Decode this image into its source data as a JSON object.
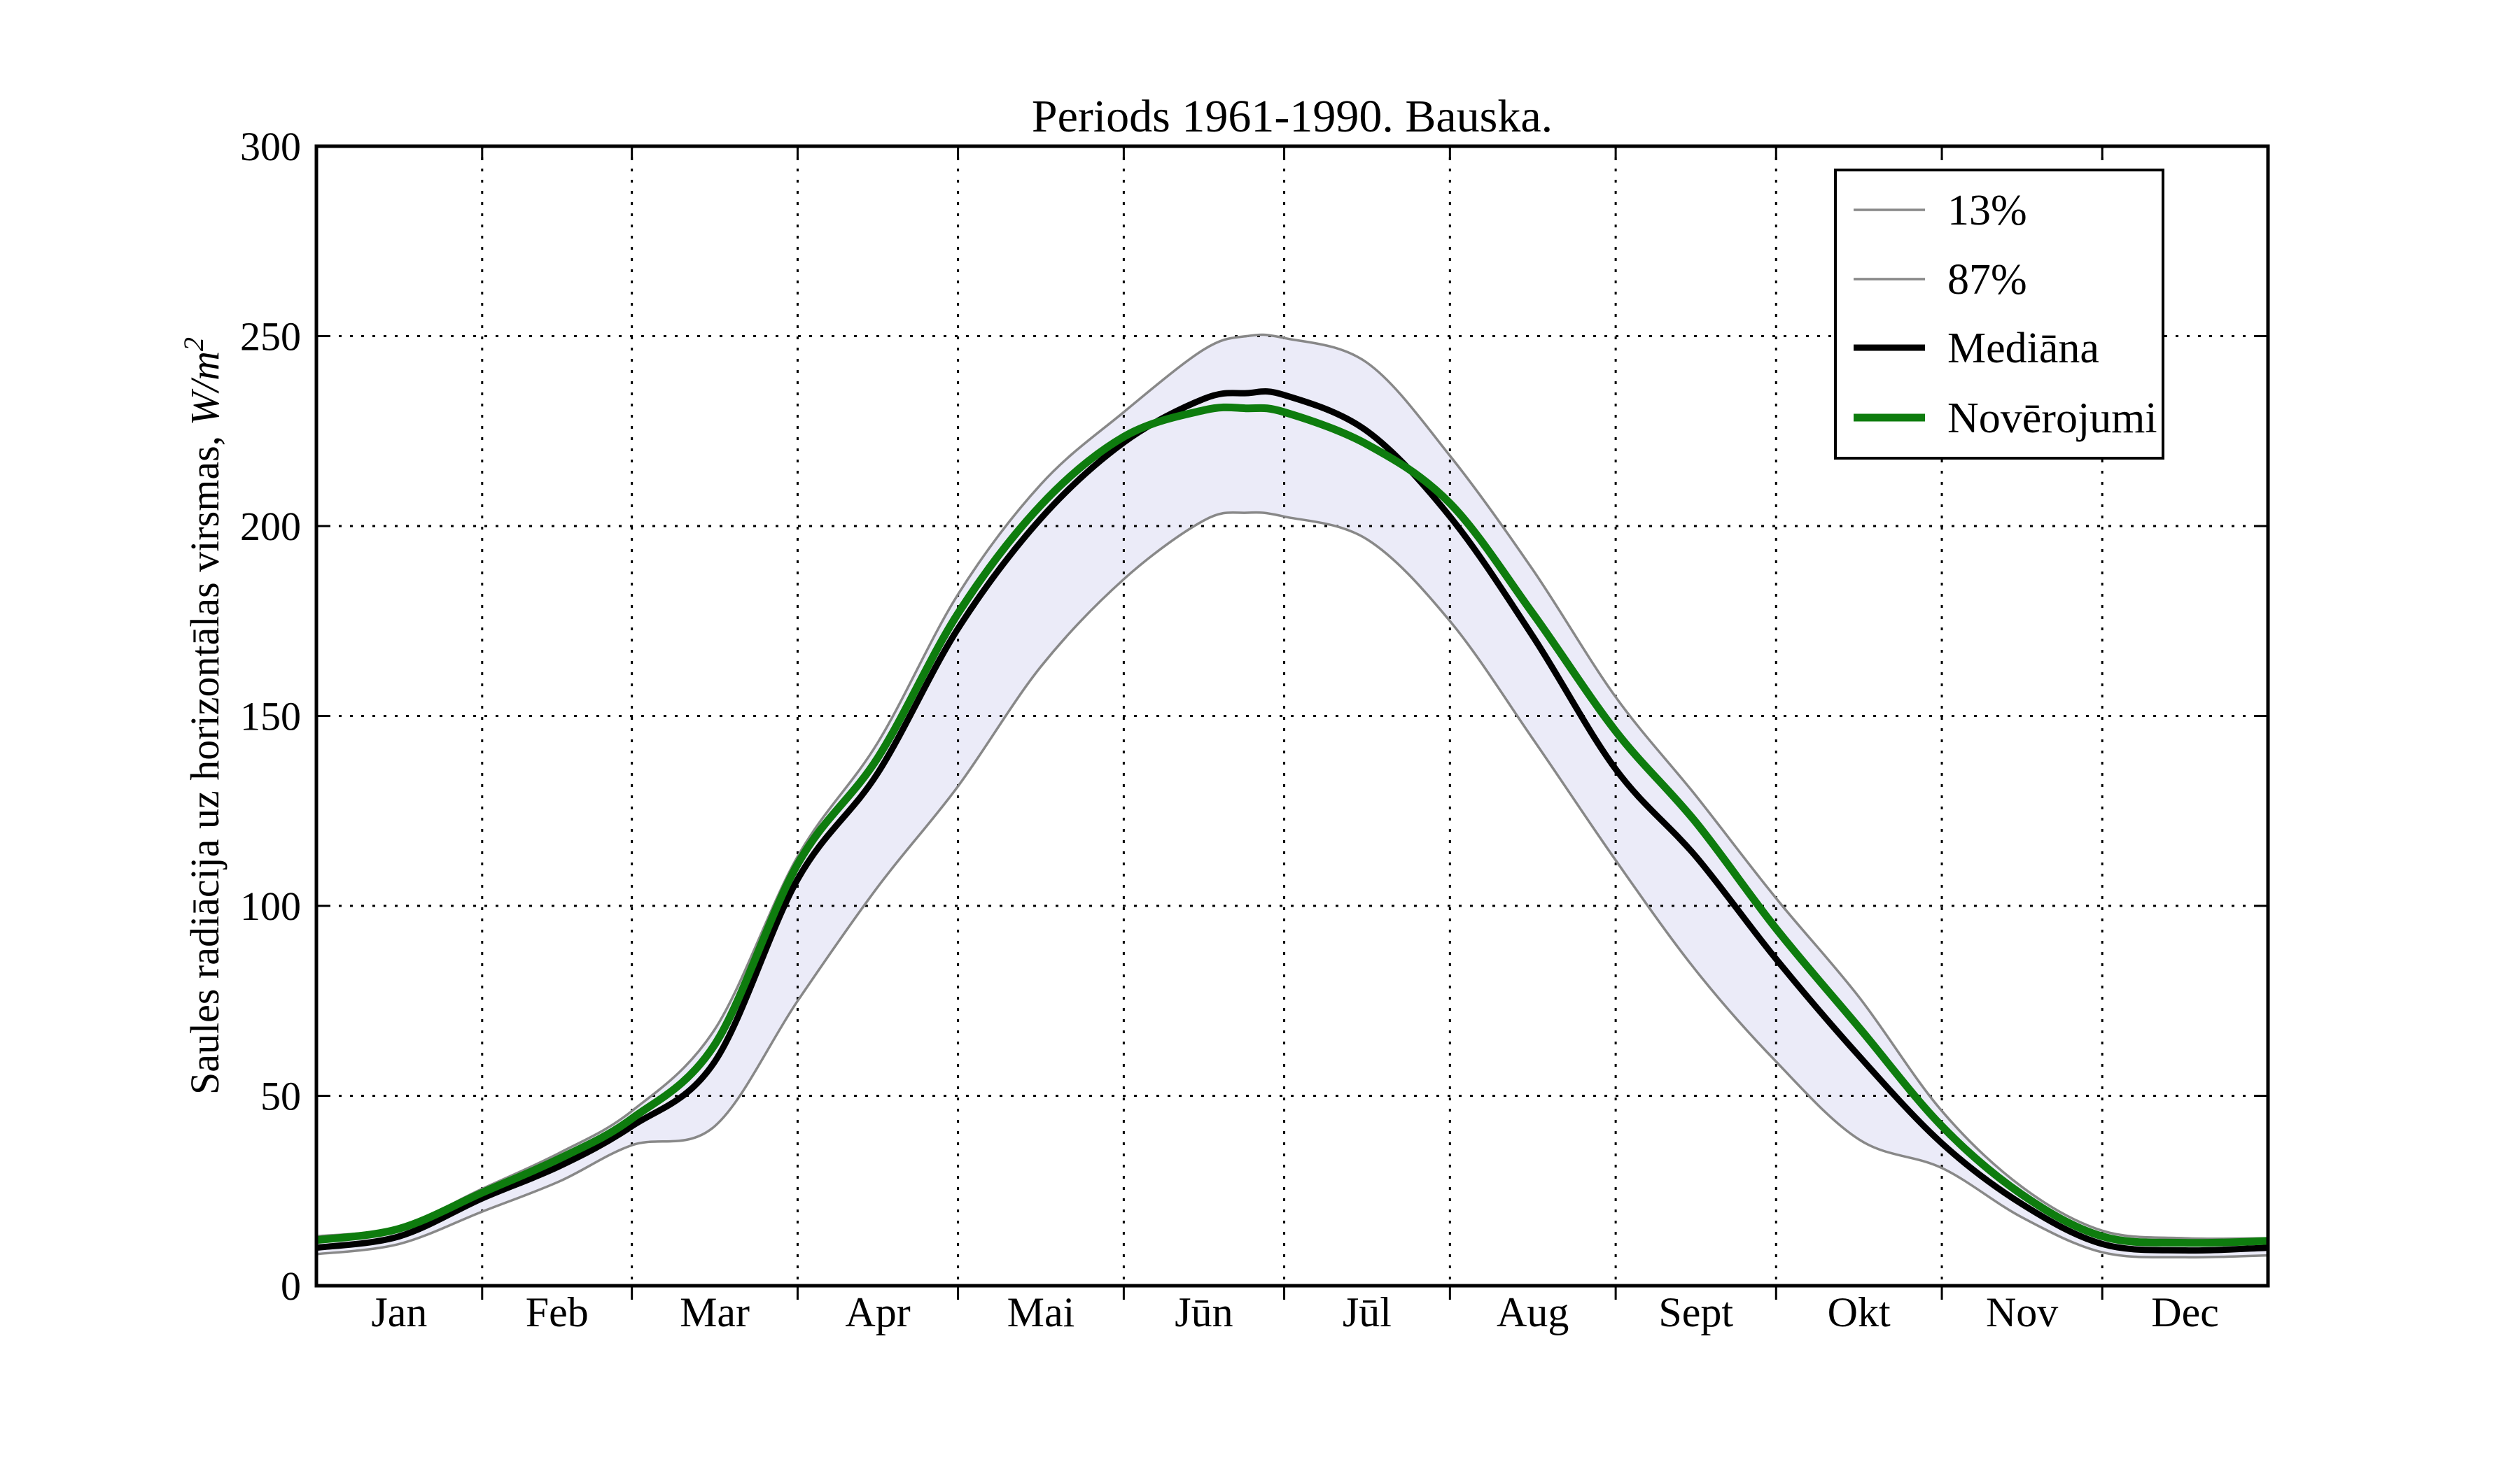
{
  "title": "Periods 1961-1990. Bauska.",
  "axes": {
    "ylabel_prefix": "Saules radiācija uz horizontālas virsmas, ",
    "ylabel_math": "W/m",
    "ylabel_exponent": "2",
    "yticks": [
      0,
      50,
      100,
      150,
      200,
      250,
      300
    ],
    "ylim": [
      0,
      300
    ],
    "month_labels": [
      "Jan",
      "Feb",
      "Mar",
      "Apr",
      "Mai",
      "Jūn",
      "Jūl",
      "Aug",
      "Sept",
      "Okt",
      "Nov",
      "Dec"
    ],
    "month_days": [
      31,
      28,
      31,
      30,
      31,
      30,
      31,
      31,
      30,
      31,
      30,
      31
    ]
  },
  "legend": {
    "position": "upper right",
    "entries": [
      {
        "label": "13%",
        "series": "13%"
      },
      {
        "label": "87%",
        "series": "87%"
      },
      {
        "label": "Mediāna",
        "series": "Mediāna"
      },
      {
        "label": "Novērojumi",
        "series": "Novērojumi"
      }
    ]
  },
  "colors": {
    "median": "#000000",
    "observations": "#0e7c0e",
    "percentile": "#888888",
    "band_fill": "#ebebf8",
    "grid": "#000000",
    "background": "#ffffff"
  },
  "chart_data": {
    "type": "line",
    "x_unit": "day_of_year",
    "xlim": [
      0,
      365
    ],
    "ylim": [
      0,
      300
    ],
    "grid": {
      "show": true,
      "style": "dotted"
    },
    "legend_position": "upper right",
    "x_days": [
      0,
      15.5,
      31,
      45.5,
      59,
      74.5,
      90,
      105,
      120,
      135.5,
      151,
      166,
      174,
      181,
      196.5,
      212,
      227.5,
      243,
      258,
      273,
      288.5,
      304,
      319,
      334,
      349.5,
      365
    ],
    "series": [
      {
        "name": "13%",
        "role": "lower_percentile",
        "color": "#888888",
        "stroke_width": 3.5,
        "values": [
          8.3,
          11,
          19.5,
          27.5,
          37,
          42,
          75,
          105,
          131.5,
          163,
          186,
          201.5,
          203.5,
          202.5,
          196.5,
          175,
          144,
          112,
          83,
          59,
          38.5,
          31,
          18,
          8.8,
          7.5,
          8
        ]
      },
      {
        "name": "87%",
        "role": "upper_percentile",
        "color": "#888888",
        "stroke_width": 3.5,
        "values": [
          13,
          15.5,
          25.5,
          35,
          46,
          67.5,
          113,
          143,
          182,
          211,
          230,
          246.5,
          250,
          249.5,
          243,
          218.5,
          188.5,
          155,
          129,
          102,
          76,
          46,
          26,
          14.5,
          12.5,
          12.5
        ]
      },
      {
        "name": "Mediāna",
        "role": "median",
        "color": "#000000",
        "stroke_width": 9,
        "values": [
          10,
          13,
          23,
          31.5,
          42,
          59,
          107,
          135,
          173,
          202,
          222,
          233.5,
          235,
          234.5,
          225,
          202.5,
          171,
          136,
          113,
          86,
          60.5,
          37.5,
          21.5,
          11,
          9.3,
          10
        ]
      },
      {
        "name": "Novērojumi",
        "role": "observations",
        "color": "#0e7c0e",
        "stroke_width": 11,
        "values": [
          12,
          15,
          24.5,
          33.5,
          44,
          63.5,
          111,
          139,
          177,
          205.5,
          223.5,
          230.5,
          231,
          230,
          221.5,
          206,
          177,
          146,
          122,
          94,
          68,
          42,
          24,
          13,
          11.3,
          11.8
        ]
      }
    ],
    "band": {
      "lower": "13%",
      "upper": "87%",
      "fill": "#ebebf8"
    }
  }
}
